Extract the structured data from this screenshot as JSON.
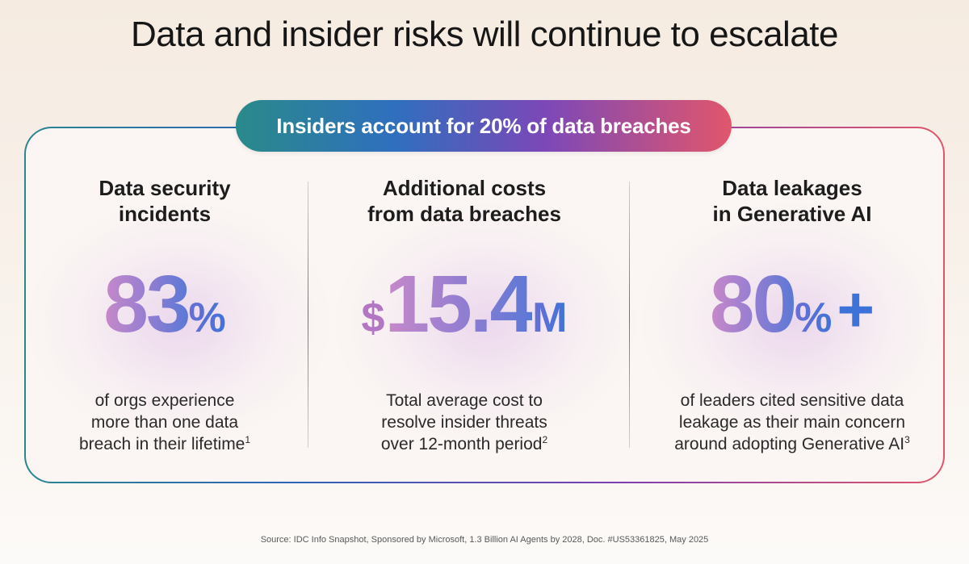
{
  "title": "Data and insider risks will continue to escalate",
  "banner": "Insiders account for 20% of data breaches",
  "columns": [
    {
      "heading_line1": "Data security",
      "heading_line2": "incidents",
      "stat_prefix": "",
      "stat_value": "83",
      "stat_suffix": "%",
      "stat_plus": "",
      "desc_line1": "of orgs experience",
      "desc_line2": "more than one data",
      "desc_line3": "breach in their lifetime",
      "footnote": "1"
    },
    {
      "heading_line1": "Additional costs",
      "heading_line2": "from data breaches",
      "stat_prefix": "$",
      "stat_value": "15.4",
      "stat_suffix": "M",
      "stat_plus": "",
      "desc_line1": "Total average cost to",
      "desc_line2": "resolve insider threats",
      "desc_line3": "over 12-month period",
      "footnote": "2"
    },
    {
      "heading_line1": "Data leakages",
      "heading_line2": "in Generative AI",
      "stat_prefix": "",
      "stat_value": "80",
      "stat_suffix": "%",
      "stat_plus": "+",
      "desc_line1": "of leaders cited sensitive data",
      "desc_line2": "leakage as their main concern",
      "desc_line3": "around adopting Generative AI",
      "footnote": "3"
    }
  ],
  "source": "Source: IDC Info Snapshot, Sponsored by Microsoft, 1.3 Billion AI Agents by 2028, Doc. #US53361825, May 2025",
  "colors": {
    "gradient_start": "#2a8a8a",
    "gradient_mid_blue": "#2f6fbe",
    "gradient_mid_purple": "#7b48b8",
    "gradient_end": "#e1566c",
    "stat_pink": "#c889c9",
    "stat_blue": "#3d72d8"
  }
}
